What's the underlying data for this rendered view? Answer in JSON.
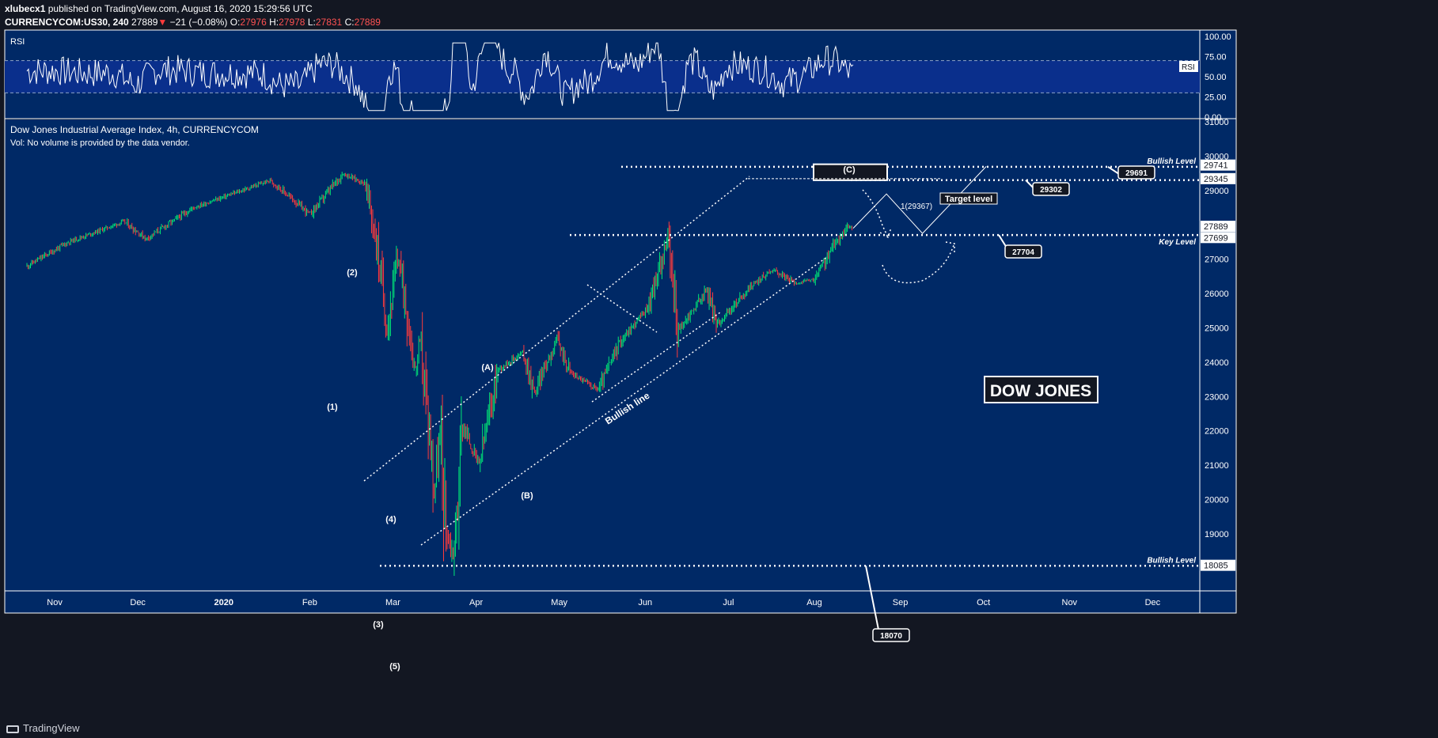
{
  "header": {
    "author": "xlubecx1",
    "published": "published on TradingView.com, August 16, 2020 15:29:56 UTC",
    "symbol": "CURRENCYCOM:US30, 240",
    "last": "27889",
    "change": "−21 (−0.08%)",
    "open_label": "O:",
    "open": "27976",
    "high_label": "H:",
    "high": "27978",
    "low_label": "L:",
    "low": "27831",
    "close_label": "C:",
    "close": "27889"
  },
  "footer": {
    "brand": "TradingView"
  },
  "colors": {
    "background": "#002966",
    "panel_border": "#ffffff",
    "rsi_band": "#0a2f8c",
    "candle_up": "#00e676",
    "candle_down": "#ff3b3b",
    "annotation": "#ffffff"
  },
  "chart_data": {
    "type": "candlestick",
    "title": "Dow Jones Industrial Average Index, 4h, CURRENCYCOM",
    "volume_note": "Vol: No volume is provided by the data vendor.",
    "x_ticks": [
      "Nov",
      "Dec",
      "2020",
      "Feb",
      "Mar",
      "Apr",
      "May",
      "Jun",
      "Jul",
      "Aug",
      "Sep",
      "Oct",
      "Nov",
      "Dec"
    ],
    "y_ticks": [
      19000,
      20000,
      21000,
      22000,
      23000,
      24000,
      25000,
      26000,
      27000,
      28000,
      29000,
      30000,
      31000
    ],
    "ylim": [
      17300,
      31000
    ],
    "price_labels": [
      "29741",
      "29345",
      "27889",
      "27699",
      "18085"
    ],
    "price_path": [
      [
        "2019-10-21",
        26800
      ],
      [
        "2019-11-05",
        27500
      ],
      [
        "2019-11-25",
        28100
      ],
      [
        "2019-12-03",
        27600
      ],
      [
        "2019-12-20",
        28500
      ],
      [
        "2020-01-17",
        29300
      ],
      [
        "2020-01-31",
        28300
      ],
      [
        "2020-02-12",
        29500
      ],
      [
        "2020-02-20",
        29200
      ],
      [
        "2020-02-24",
        27500
      ],
      [
        "2020-02-28",
        25000
      ],
      [
        "2020-03-03",
        27100
      ],
      [
        "2020-03-09",
        23800
      ],
      [
        "2020-03-11",
        24600
      ],
      [
        "2020-03-16",
        20300
      ],
      [
        "2020-03-18",
        21800
      ],
      [
        "2020-03-20",
        19200
      ],
      [
        "2020-03-23",
        18300
      ],
      [
        "2020-03-26",
        22200
      ],
      [
        "2020-04-01",
        21000
      ],
      [
        "2020-04-08",
        23800
      ],
      [
        "2020-04-17",
        24300
      ],
      [
        "2020-04-21",
        23100
      ],
      [
        "2020-04-29",
        24700
      ],
      [
        "2020-05-04",
        23700
      ],
      [
        "2020-05-14",
        23200
      ],
      [
        "2020-05-22",
        24600
      ],
      [
        "2020-06-01",
        25600
      ],
      [
        "2020-06-08",
        27600
      ],
      [
        "2020-06-12",
        24900
      ],
      [
        "2020-06-22",
        26100
      ],
      [
        "2020-06-26",
        25100
      ],
      [
        "2020-07-08",
        26200
      ],
      [
        "2020-07-16",
        26700
      ],
      [
        "2020-07-24",
        26300
      ],
      [
        "2020-07-31",
        26400
      ],
      [
        "2020-08-07",
        27400
      ],
      [
        "2020-08-12",
        27950
      ],
      [
        "2020-08-14",
        27889
      ]
    ],
    "rsi": {
      "label": "RSI",
      "y_ticks": [
        "100.00",
        "75.00",
        "50.00",
        "25.00",
        "0.00"
      ],
      "overbought": 70,
      "oversold": 30,
      "last_label": "RSI"
    },
    "levels": [
      {
        "price": 29691,
        "callout": "29691",
        "tag": "Bullish Level"
      },
      {
        "price": 29302,
        "callout": "29302",
        "tag": ""
      },
      {
        "price": 27704,
        "callout": "27704",
        "tag": "Key Level"
      },
      {
        "price": 18070,
        "callout": "18070",
        "tag": "Bullish Level"
      }
    ],
    "annotations": {
      "target_level": "Target level",
      "fib": "1(29367)",
      "bullish_line": "Bullish line",
      "watermark": "DOW JONES",
      "waves": [
        "(1)",
        "(2)",
        "(3)",
        "(4)",
        "(5)",
        "(A)",
        "(B)",
        "(C)"
      ]
    },
    "projection": [
      [
        "2020-08-14",
        27900
      ],
      [
        "2020-08-26",
        28900
      ],
      [
        "2020-09-08",
        27750
      ],
      [
        "2020-10-01",
        29700
      ]
    ]
  }
}
